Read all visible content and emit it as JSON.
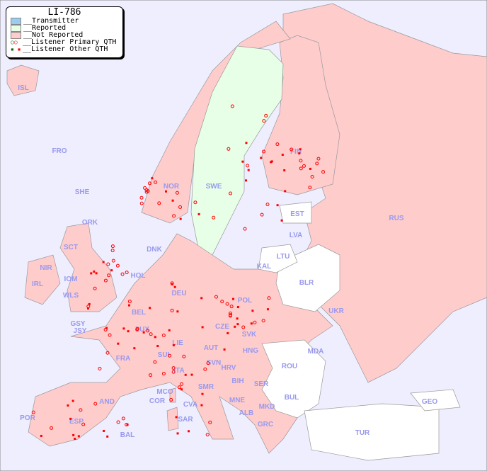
{
  "title": "LI-786",
  "legend": [
    {
      "label": "__Transmitter",
      "color": "#99ccee"
    },
    {
      "label": "__Reported",
      "color": "#e6ffe6"
    },
    {
      "label": "__Not Reported",
      "color": "#ffcccc"
    },
    {
      "label": "__Listener Primary QTH",
      "icon": "open-circle",
      "colors": [
        "#006600",
        "#ff0000"
      ]
    },
    {
      "label": "__Listener Other QTH",
      "icon": "square",
      "colors": [
        "#006600",
        "#ff0000"
      ]
    }
  ],
  "colors": {
    "sea": "#eeeeff",
    "not_reported": "#ffcccc",
    "reported": "#e6ffe6",
    "no_data": "#ffffff",
    "marker": "#ff0000",
    "label": "#9999ee"
  },
  "countries": [
    "ISL",
    "FRO",
    "SHE",
    "ORK",
    "NOR",
    "SWE",
    "FIN",
    "EST",
    "RUS",
    "LVA",
    "LTU",
    "KAL",
    "BLR",
    "DNK",
    "HOL",
    "IRL",
    "NIR",
    "SCT",
    "IOM",
    "WLS",
    "GSY",
    "JSY",
    "BEL",
    "DEU",
    "POL",
    "UKR",
    "CZE",
    "SVK",
    "LUX",
    "FRA",
    "SUI",
    "LIE",
    "AUT",
    "HNG",
    "MDA",
    "ROU",
    "SVN",
    "HRV",
    "ITA",
    "BIH",
    "SER",
    "MCO",
    "COR",
    "AND",
    "BUL",
    "MNE",
    "MKD",
    "ALB",
    "CVA",
    "SMR",
    "GEO",
    "POR",
    "ESP",
    "SAR",
    "BAL",
    "GRC",
    "TUR"
  ]
}
